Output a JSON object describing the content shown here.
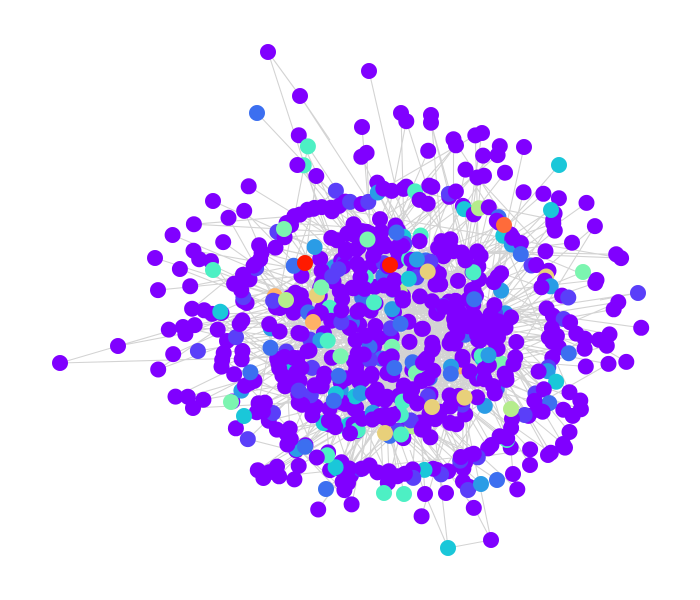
{
  "figure": {
    "type": "network-graph",
    "colormap": "rainbow",
    "edge_color": "#d3d3d3",
    "background": "#ffffff",
    "node_count_estimate": 600
  },
  "palette": {
    "purple": "#8000ff",
    "indigo": "#5a3ff9",
    "blue": "#3c6ff0",
    "azure": "#2a9ce6",
    "cyan": "#1ac7d9",
    "aqua": "#4df0c4",
    "mint": "#7cf5b0",
    "lime": "#b5ec8c",
    "sand": "#e8d07a",
    "peach": "#ffb266",
    "orange": "#ff6b3a",
    "red": "#ff1a00"
  }
}
